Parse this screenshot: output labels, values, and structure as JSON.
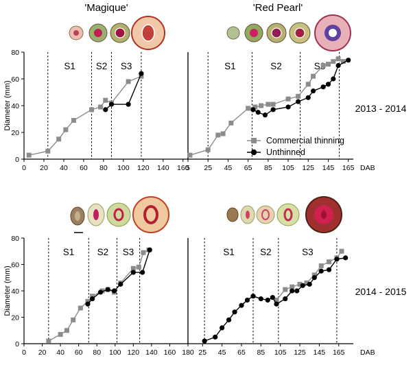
{
  "cultivar_titles": [
    "'Magique'",
    "'Red Pearl'"
  ],
  "row_labels": [
    "2013 - 2014",
    "2014 - 2015"
  ],
  "legend": {
    "commercial": "Commercial thinning",
    "unthinned": "Unthinned",
    "position": "lower-right of top-right panel"
  },
  "colors": {
    "commercial": "#8c8c8c",
    "unthinned": "#000000",
    "stage_line": "#000000"
  },
  "chart_data": [
    {
      "type": "line",
      "panel": "Magique 2013-2014",
      "ylabel": "Diameter (mm)",
      "xlabel": "",
      "ylim": [
        0,
        80
      ],
      "yticks": [
        0,
        20,
        40,
        60,
        80
      ],
      "xlim": [
        0,
        165
      ],
      "xticks": [
        0,
        20,
        40,
        60,
        80,
        100,
        120,
        140,
        160
      ],
      "stages": [
        {
          "label": "S1",
          "start": 24,
          "end": 68
        },
        {
          "label": "S2",
          "start": 68,
          "end": 88
        },
        {
          "label": "S3",
          "start": 88,
          "end": 118
        }
      ],
      "stage_lines": [
        24,
        68,
        88,
        118
      ],
      "series": [
        {
          "name": "Commercial thinning",
          "x": [
            5,
            24,
            35,
            42,
            50,
            68,
            77,
            82,
            88,
            105,
            118
          ],
          "y": [
            3,
            6,
            15,
            22,
            29,
            37,
            39,
            44,
            42,
            58,
            62
          ]
        },
        {
          "name": "Unthinned",
          "x": [
            82,
            88,
            105,
            118
          ],
          "y": [
            37,
            41,
            41,
            64
          ]
        }
      ]
    },
    {
      "type": "line",
      "panel": "Red Pearl 2013-2014",
      "ylabel": "",
      "xlabel": "DAB",
      "ylim": [
        0,
        80
      ],
      "yticks": [],
      "xlim": [
        5,
        170
      ],
      "xticks": [
        5,
        25,
        45,
        65,
        85,
        105,
        125,
        145,
        165
      ],
      "stages": [
        {
          "label": "S1",
          "start": 25,
          "end": 69
        },
        {
          "label": "S2",
          "start": 69,
          "end": 117
        },
        {
          "label": "S3",
          "start": 117,
          "end": 156
        }
      ],
      "stage_lines": [
        25,
        69,
        117,
        156
      ],
      "series": [
        {
          "name": "Commercial thinning",
          "x": [
            7,
            25,
            35,
            40,
            48,
            65,
            72,
            78,
            85,
            90,
            105,
            115,
            125,
            130,
            140,
            145,
            150,
            155,
            160
          ],
          "y": [
            3,
            7,
            18,
            19,
            27,
            38,
            39,
            40,
            41,
            41,
            45,
            47,
            56,
            62,
            70,
            71,
            73,
            75,
            73
          ]
        },
        {
          "name": "Unthinned",
          "x": [
            70,
            75,
            82,
            90,
            105,
            115,
            125,
            130,
            140,
            145,
            150,
            155,
            165
          ],
          "y": [
            37,
            35,
            33,
            37,
            39,
            43,
            46,
            51,
            54,
            56,
            60,
            70,
            74
          ]
        }
      ]
    },
    {
      "type": "line",
      "panel": "Magique 2014-2015",
      "ylabel": "Diameter (mm)",
      "xlabel": "",
      "ylim": [
        0,
        80
      ],
      "yticks": [
        0,
        20,
        40,
        60,
        80
      ],
      "xlim": [
        0,
        180
      ],
      "xticks": [
        0,
        20,
        40,
        60,
        80,
        100,
        120,
        140,
        160,
        180
      ],
      "stages": [
        {
          "label": "S1",
          "start": 27,
          "end": 71
        },
        {
          "label": "S2",
          "start": 71,
          "end": 102
        },
        {
          "label": "S3",
          "start": 102,
          "end": 127
        }
      ],
      "stage_lines": [
        27,
        71,
        102,
        127
      ],
      "series": [
        {
          "name": "Commercial thinning",
          "x": [
            27,
            40,
            47,
            54,
            62,
            70,
            75,
            86,
            92,
            99,
            106,
            120,
            126,
            131,
            137
          ],
          "y": [
            2,
            7,
            10,
            18,
            27,
            32,
            36,
            40,
            41,
            39,
            46,
            57,
            58,
            69,
            71
          ]
        },
        {
          "name": "Unthinned",
          "x": [
            70,
            75,
            84,
            92,
            99,
            106,
            120,
            130,
            138
          ],
          "y": [
            30,
            34,
            39,
            41,
            40,
            45,
            54,
            54,
            71
          ]
        }
      ]
    },
    {
      "type": "line",
      "panel": "Red Pearl 2014-2015",
      "ylabel": "",
      "xlabel": "DAB",
      "ylim": [
        0,
        80
      ],
      "yticks": [],
      "xlim": [
        10,
        180
      ],
      "xticks": [
        25,
        45,
        65,
        85,
        105,
        125,
        145,
        165
      ],
      "stages": [
        {
          "label": "S1",
          "start": 27,
          "end": 77
        },
        {
          "label": "S2",
          "start": 77,
          "end": 103
        },
        {
          "label": "S3",
          "start": 103,
          "end": 163
        }
      ],
      "stage_lines": [
        27,
        77,
        103,
        163
      ],
      "series": [
        {
          "name": "Commercial thinning",
          "x": [
            101,
            110,
            117,
            125,
            132,
            140,
            147,
            155,
            163,
            168
          ],
          "y": [
            33,
            41,
            43,
            45,
            46,
            52,
            59,
            62,
            65,
            70
          ]
        },
        {
          "name": "Unthinned",
          "x": [
            27,
            38,
            45,
            52,
            58,
            65,
            71,
            77,
            85,
            92,
            97,
            101,
            110,
            117,
            122,
            128,
            135,
            140,
            147,
            155,
            163,
            172
          ],
          "y": [
            2,
            5,
            12,
            18,
            24,
            29,
            33,
            36,
            34,
            33,
            35,
            30,
            34,
            40,
            40,
            44,
            45,
            50,
            55,
            56,
            64,
            65
          ]
        }
      ]
    }
  ]
}
